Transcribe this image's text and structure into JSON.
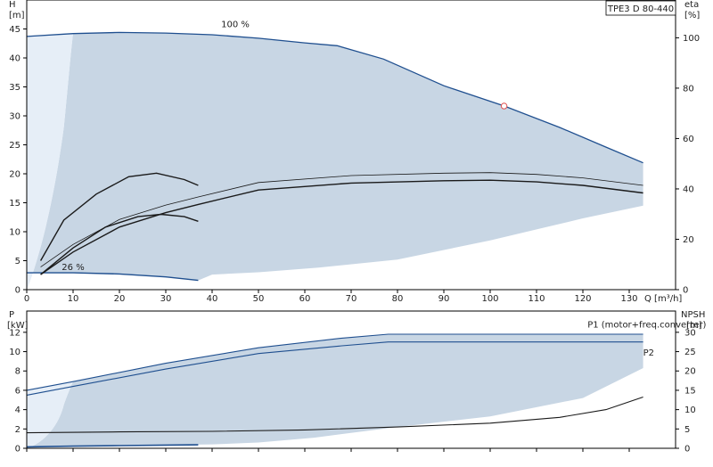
{
  "chart_data": [
    {
      "type": "line",
      "id": "head-efficiency",
      "title": "TPE3 D 80-440",
      "xlabel": "Q [m³/h]",
      "ylabel": "H",
      "ylabel_unit": "[m]",
      "y2label": "eta",
      "y2label_unit": "[%]",
      "xlim": [
        0,
        140
      ],
      "ylim": [
        0,
        50
      ],
      "y2lim": [
        0,
        115
      ],
      "x_ticks": [
        0,
        10,
        20,
        30,
        40,
        50,
        60,
        70,
        80,
        90,
        100,
        110,
        120,
        130
      ],
      "y_ticks": [
        0,
        5,
        10,
        15,
        20,
        25,
        30,
        35,
        40,
        45
      ],
      "y2_ticks": [
        0,
        20,
        40,
        60,
        80,
        100
      ],
      "grid": false,
      "annotations": [
        {
          "text": "100 %",
          "x": 45,
          "y": 45.3
        },
        {
          "text": "26 %",
          "x": 10,
          "y": 3.4
        }
      ],
      "duty_point": {
        "x": 103,
        "y": 31.7
      },
      "series": [
        {
          "color": "#1f4f8f",
          "points": [
            [
              0,
              43.7
            ],
            [
              10,
              44.2
            ],
            [
              20,
              44.4
            ],
            [
              30,
              44.3
            ],
            [
              40,
              44.0
            ],
            [
              50,
              43.4
            ],
            [
              60,
              42.6
            ],
            [
              67,
              42.1
            ],
            [
              77,
              39.8
            ],
            [
              90,
              35.2
            ],
            [
              103,
              31.7
            ],
            [
              115,
              28.0
            ],
            [
              125,
              24.6
            ],
            [
              133,
              21.9
            ]
          ]
        },
        {
          "color": "#1f4f8f",
          "points": [
            [
              0,
              2.9
            ],
            [
              10,
              2.9
            ],
            [
              20,
              2.7
            ],
            [
              30,
              2.2
            ],
            [
              37,
              1.6
            ]
          ]
        },
        {
          "color": "#1a1a1a",
          "points": [
            [
              3,
              2.6
            ],
            [
              10,
              6.5
            ],
            [
              20,
              10.8
            ],
            [
              30,
              13.3
            ],
            [
              37,
              14.7
            ],
            [
              50,
              17.2
            ],
            [
              70,
              18.4
            ],
            [
              90,
              18.8
            ],
            [
              100,
              18.9
            ],
            [
              110,
              18.6
            ],
            [
              120,
              18.0
            ],
            [
              133,
              16.7
            ]
          ]
        },
        {
          "color": "#1a1a1a",
          "points": [
            [
              3,
              5
            ],
            [
              8,
              12
            ],
            [
              15,
              16.5
            ],
            [
              22,
              19.5
            ],
            [
              28,
              20.1
            ],
            [
              34,
              19.0
            ],
            [
              37,
              18.0
            ]
          ]
        },
        {
          "color": "#1a1a1a",
          "points": [
            [
              3,
              2.6
            ],
            [
              10,
              7.2
            ],
            [
              17,
              10.8
            ],
            [
              24,
              12.6
            ],
            [
              29,
              13.0
            ],
            [
              34,
              12.6
            ],
            [
              37,
              11.8
            ]
          ]
        }
      ]
    },
    {
      "type": "line",
      "id": "power-npsh",
      "xlabel": "",
      "ylabel": "P",
      "ylabel_unit": "[kW]",
      "y2label": "NPSH",
      "y2label_unit": "[m]",
      "xlim": [
        0,
        140
      ],
      "ylim": [
        0,
        14.2
      ],
      "y2lim": [
        0,
        35.5
      ],
      "y_ticks": [
        0,
        2,
        4,
        6,
        8,
        10,
        12
      ],
      "y2_ticks": [
        0,
        5,
        10,
        15,
        20,
        25,
        30
      ],
      "grid": false,
      "legend_labels": [
        {
          "text": "P1 (motor+freq.converter)",
          "x": 121,
          "y": 12.5
        },
        {
          "text": "P2",
          "x": 133,
          "y": 9.6
        }
      ],
      "series": [
        {
          "color": "#1f4f8f",
          "points": [
            [
              0,
              6.0
            ],
            [
              10,
              6.9
            ],
            [
              30,
              8.8
            ],
            [
              50,
              10.4
            ],
            [
              68,
              11.4
            ],
            [
              78,
              11.8
            ],
            [
              100,
              11.8
            ],
            [
              133,
              11.8
            ]
          ]
        },
        {
          "color": "#1f4f8f",
          "points": [
            [
              0,
              5.5
            ],
            [
              10,
              6.4
            ],
            [
              30,
              8.2
            ],
            [
              50,
              9.8
            ],
            [
              68,
              10.6
            ],
            [
              78,
              11.0
            ],
            [
              100,
              11.0
            ],
            [
              133,
              11.0
            ]
          ]
        },
        {
          "color": "#1a1a1a",
          "points": [
            [
              0,
              1.6
            ],
            [
              20,
              1.7
            ],
            [
              40,
              1.75
            ],
            [
              60,
              1.9
            ],
            [
              80,
              2.2
            ],
            [
              100,
              2.6
            ],
            [
              115,
              3.2
            ],
            [
              125,
              4.0
            ],
            [
              133,
              5.3
            ]
          ]
        },
        {
          "color": "#1f4f8f",
          "points": [
            [
              0,
              0.15
            ],
            [
              10,
              0.22
            ],
            [
              20,
              0.28
            ],
            [
              30,
              0.33
            ],
            [
              37,
              0.36
            ]
          ]
        }
      ]
    }
  ]
}
